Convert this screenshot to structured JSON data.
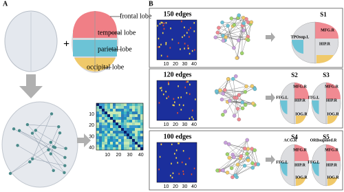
{
  "panel_a": {
    "label": "A",
    "lobes": [
      "frontal lobe",
      "temporal lobe",
      "parietal lobe",
      "occipital lobe"
    ],
    "matrix_ticks": [
      "10",
      "20",
      "30",
      "40"
    ]
  },
  "panel_b": {
    "label": "B",
    "matrix_ticks": [
      "10",
      "20",
      "30",
      "40"
    ],
    "rows": [
      {
        "edges": "150 edges",
        "states": [
          {
            "name": "S1",
            "regions": [
              "TPOsup.L",
              "MFG.R",
              "HIP.R"
            ]
          }
        ]
      },
      {
        "edges": "120 edges",
        "states": [
          {
            "name": "S2",
            "regions": [
              "MFG.R",
              "FFG.L",
              "HIP.R",
              "IOG.R"
            ]
          },
          {
            "name": "S3",
            "regions": [
              "MFG.R",
              "ITG.L",
              "HIP.R",
              "IOG.R"
            ]
          }
        ]
      },
      {
        "edges": "100 edges",
        "states": [
          {
            "name": "S4",
            "regions": [
              "ACG.R",
              "MFG.R",
              "FFG.L",
              "HIP.R",
              "IOG.R"
            ]
          },
          {
            "name": "S5",
            "regions": [
              "ORBsupmed.R",
              "MFG.R",
              "FFG.L",
              "HIP.R",
              "IOG.R"
            ]
          }
        ]
      }
    ]
  }
}
